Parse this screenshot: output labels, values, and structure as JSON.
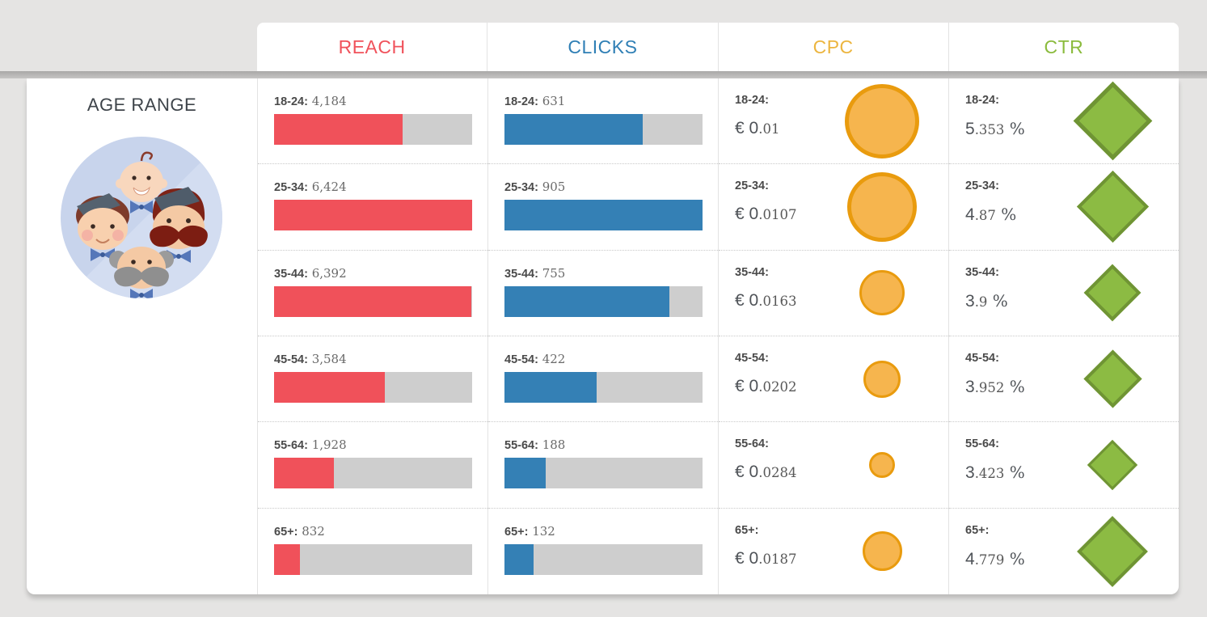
{
  "age_column": {
    "title": "AGE RANGE",
    "illustration": "four-men-faces-icon"
  },
  "columns": [
    {
      "key": "reach",
      "label": "REACH",
      "color": "#f0525b",
      "bar_color": "#f0515a",
      "type": "bar"
    },
    {
      "key": "clicks",
      "label": "CLICKS",
      "color": "#2f7fb5",
      "bar_color": "#3480b5",
      "type": "bar"
    },
    {
      "key": "cpc",
      "label": "CPC",
      "color": "#ecb53f",
      "fill_color": "#f6b54e",
      "border_color": "#e99b0e",
      "type": "circle"
    },
    {
      "key": "ctr",
      "label": "CTR",
      "color": "#8bbb3d",
      "fill_color": "#8cbb43",
      "border_color": "#6f9434",
      "type": "diamond"
    }
  ],
  "rows": [
    {
      "age_label": "18-24:",
      "reach_display": "4,184",
      "reach": 4184,
      "clicks_display": "631",
      "clicks": 631,
      "cpc": 0.01,
      "cpc_big": "€ 0",
      "cpc_small": ".01",
      "ctr": 5.353,
      "ctr_big": "5",
      "ctr_small": ".353",
      "ctr_suffix": "%"
    },
    {
      "age_label": "25-34:",
      "reach_display": "6,424",
      "reach": 6424,
      "clicks_display": "905",
      "clicks": 905,
      "cpc": 0.0107,
      "cpc_big": "€ 0",
      "cpc_small": ".0107",
      "ctr": 4.87,
      "ctr_big": "4",
      "ctr_small": ".87",
      "ctr_suffix": "%"
    },
    {
      "age_label": "35-44:",
      "reach_display": "6,392",
      "reach": 6392,
      "clicks_display": "755",
      "clicks": 755,
      "cpc": 0.0163,
      "cpc_big": "€ 0",
      "cpc_small": ".0163",
      "ctr": 3.9,
      "ctr_big": "3",
      "ctr_small": ".9",
      "ctr_suffix": "%"
    },
    {
      "age_label": "45-54:",
      "reach_display": "3,584",
      "reach": 3584,
      "clicks_display": "422",
      "clicks": 422,
      "cpc": 0.0202,
      "cpc_big": "€ 0",
      "cpc_small": ".0202",
      "ctr": 3.952,
      "ctr_big": "3",
      "ctr_small": ".952",
      "ctr_suffix": "%"
    },
    {
      "age_label": "55-64:",
      "reach_display": "1,928",
      "reach": 1928,
      "clicks_display": "188",
      "clicks": 188,
      "cpc": 0.0284,
      "cpc_big": "€ 0",
      "cpc_small": ".0284",
      "ctr": 3.423,
      "ctr_big": "3",
      "ctr_small": ".423",
      "ctr_suffix": "%"
    },
    {
      "age_label": "65+:",
      "reach_display": "832",
      "reach": 832,
      "clicks_display": "132",
      "clicks": 132,
      "cpc": 0.0187,
      "cpc_big": "€ 0",
      "cpc_small": ".0187",
      "ctr": 4.779,
      "ctr_big": "4",
      "ctr_small": ".779",
      "ctr_suffix": "%"
    }
  ],
  "chart_data": {
    "type": "table",
    "title": "AGE RANGE",
    "categories": [
      "18-24",
      "25-34",
      "35-44",
      "45-54",
      "55-64",
      "65+"
    ],
    "series": [
      {
        "name": "REACH",
        "type": "bar",
        "values": [
          4184,
          6424,
          6392,
          3584,
          1928,
          832
        ]
      },
      {
        "name": "CLICKS",
        "type": "bar",
        "values": [
          631,
          905,
          755,
          422,
          188,
          132
        ]
      },
      {
        "name": "CPC (€)",
        "type": "bubble",
        "values": [
          0.01,
          0.0107,
          0.0163,
          0.0202,
          0.0284,
          0.0187
        ],
        "note": "bubble size inversely proportional to CPC"
      },
      {
        "name": "CTR (%)",
        "type": "diamond",
        "values": [
          5.353,
          4.87,
          3.9,
          3.952,
          3.423,
          4.779
        ],
        "note": "diamond size proportional to CTR"
      }
    ],
    "layout": "rows are age buckets, bars scaled to column max"
  },
  "style": {
    "page_bg": "#e5e4e3",
    "card_bg": "#ffffff",
    "bar_track": "#cecece",
    "divider": "#e3e3e3",
    "row_dotted": "#c9c9c9"
  }
}
